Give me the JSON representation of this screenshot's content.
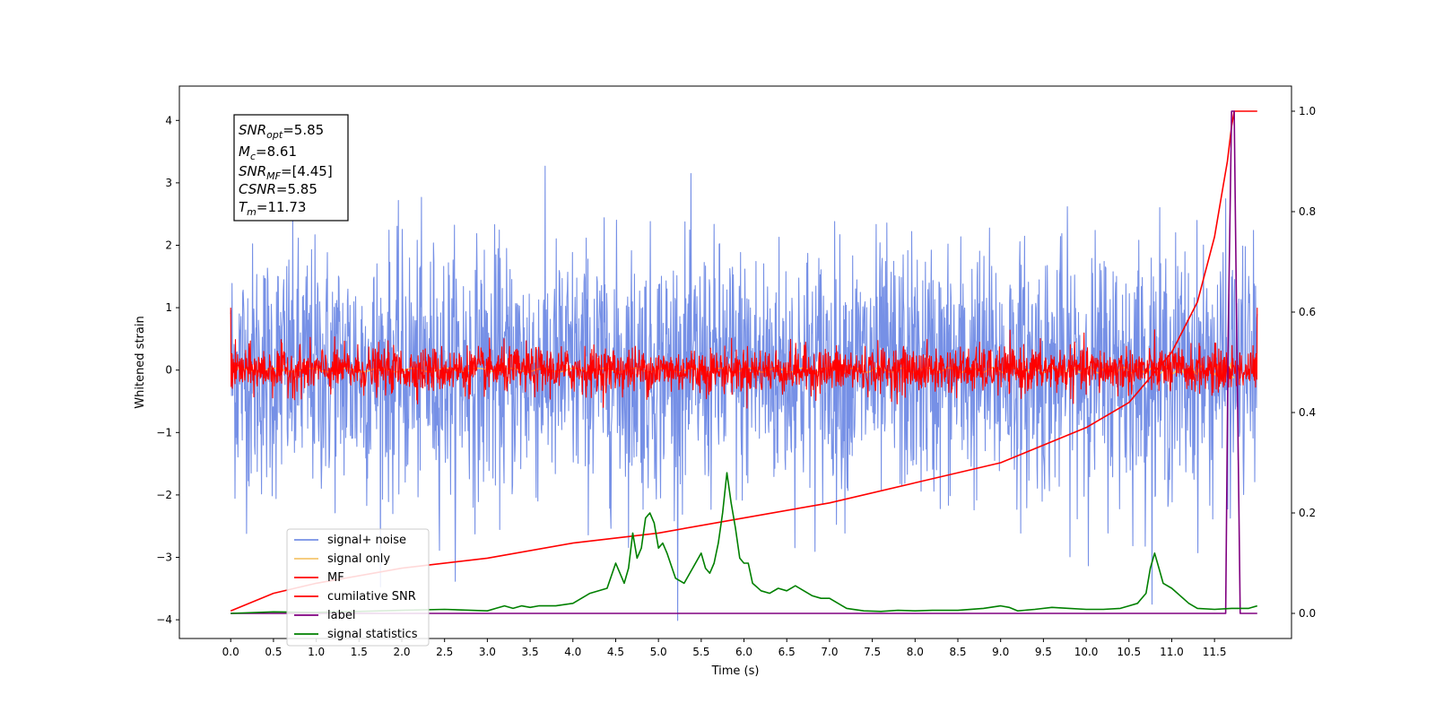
{
  "chart_data": {
    "type": "line",
    "xlabel": "Time (s)",
    "ylabel": "Whitened strain",
    "xlim": [
      -0.6,
      12.4
    ],
    "ylim": [
      -4.3,
      4.55
    ],
    "y2lim": [
      -0.05,
      1.05
    ],
    "x_ticks": [
      "0.0",
      "0.5",
      "1.0",
      "1.5",
      "2.0",
      "2.5",
      "3.0",
      "3.5",
      "4.0",
      "4.5",
      "5.0",
      "5.5",
      "6.0",
      "6.5",
      "7.0",
      "7.5",
      "8.0",
      "8.5",
      "9.0",
      "9.5",
      "10.0",
      "10.5",
      "11.0",
      "11.5"
    ],
    "y_ticks": [
      "−4",
      "−3",
      "−2",
      "−1",
      "0",
      "1",
      "2",
      "3",
      "4"
    ],
    "y2_ticks": [
      "0.0",
      "0.2",
      "0.4",
      "0.6",
      "0.8",
      "1.0"
    ],
    "grid": false,
    "legend_position": "lower-left",
    "annotation": {
      "snr_opt": {
        "sym": "SNR",
        "sub": "opt",
        "value": "=5.85"
      },
      "mc": {
        "sym": "M",
        "sub": "c",
        "value": "=8.61"
      },
      "snr_mf": {
        "sym": "SNR",
        "sub": "MF",
        "value": "=[4.45]"
      },
      "csnr": {
        "sym": "CSNR",
        "sub": "",
        "value": "=5.85"
      },
      "tm": {
        "sym": "T",
        "sub": "m",
        "value": "=11.73"
      }
    },
    "series": [
      {
        "name": "signal+ noise",
        "color": "#7690e6",
        "axis": "left",
        "kind": "noise",
        "envelope_std": 0.95,
        "x_range": [
          0.0,
          12.0
        ]
      },
      {
        "name": "signal only",
        "color": "#f5c66e",
        "axis": "left",
        "kind": "chirp",
        "x_range": [
          0.0,
          11.73
        ]
      },
      {
        "name": "MF",
        "color": "#ff0000",
        "axis": "left",
        "kind": "noise",
        "envelope_std": 0.18,
        "x_range": [
          0.0,
          12.0
        ]
      },
      {
        "name": "cumilative SNR",
        "color": "#ff0000",
        "axis": "right",
        "x": [
          0.0,
          0.5,
          1.0,
          2.0,
          3.0,
          4.0,
          5.0,
          6.0,
          7.0,
          8.0,
          9.0,
          10.0,
          10.5,
          11.0,
          11.3,
          11.5,
          11.6,
          11.65,
          11.7,
          11.73,
          11.8,
          12.0
        ],
        "values": [
          0.005,
          0.04,
          0.06,
          0.09,
          0.11,
          0.14,
          0.16,
          0.19,
          0.22,
          0.26,
          0.3,
          0.37,
          0.42,
          0.52,
          0.62,
          0.75,
          0.85,
          0.9,
          0.97,
          1.0,
          1.0,
          1.0
        ]
      },
      {
        "name": "label",
        "color": "#800080",
        "axis": "right",
        "x": [
          0.0,
          11.63,
          11.66,
          11.7,
          11.73,
          11.76,
          11.8,
          12.0
        ],
        "values": [
          0.0,
          0.0,
          0.55,
          1.0,
          1.0,
          0.55,
          0.0,
          0.0
        ]
      },
      {
        "name": "signal statistics",
        "color": "#008000",
        "axis": "right",
        "x": [
          0.0,
          0.5,
          1.0,
          1.5,
          2.0,
          2.5,
          3.0,
          3.1,
          3.2,
          3.3,
          3.4,
          3.5,
          3.6,
          3.8,
          4.0,
          4.1,
          4.2,
          4.4,
          4.5,
          4.6,
          4.65,
          4.7,
          4.75,
          4.8,
          4.85,
          4.9,
          4.95,
          5.0,
          5.05,
          5.1,
          5.2,
          5.3,
          5.4,
          5.5,
          5.55,
          5.6,
          5.65,
          5.7,
          5.75,
          5.8,
          5.85,
          5.9,
          5.95,
          6.0,
          6.05,
          6.1,
          6.2,
          6.3,
          6.4,
          6.5,
          6.6,
          6.7,
          6.8,
          6.9,
          7.0,
          7.2,
          7.4,
          7.6,
          7.8,
          8.0,
          8.2,
          8.5,
          8.8,
          9.0,
          9.1,
          9.2,
          9.4,
          9.6,
          9.8,
          10.0,
          10.2,
          10.4,
          10.5,
          10.6,
          10.7,
          10.75,
          10.8,
          10.85,
          10.9,
          11.0,
          11.2,
          11.3,
          11.5,
          11.7,
          11.9,
          12.0
        ],
        "values": [
          0.0,
          0.003,
          0.002,
          0.004,
          0.006,
          0.008,
          0.005,
          0.01,
          0.015,
          0.01,
          0.015,
          0.012,
          0.015,
          0.015,
          0.02,
          0.03,
          0.04,
          0.05,
          0.1,
          0.06,
          0.09,
          0.16,
          0.11,
          0.13,
          0.19,
          0.2,
          0.18,
          0.13,
          0.14,
          0.12,
          0.07,
          0.06,
          0.09,
          0.12,
          0.09,
          0.08,
          0.1,
          0.14,
          0.2,
          0.28,
          0.22,
          0.17,
          0.11,
          0.1,
          0.1,
          0.06,
          0.045,
          0.04,
          0.05,
          0.045,
          0.055,
          0.045,
          0.035,
          0.03,
          0.03,
          0.01,
          0.005,
          0.004,
          0.006,
          0.005,
          0.006,
          0.006,
          0.01,
          0.015,
          0.012,
          0.005,
          0.008,
          0.012,
          0.01,
          0.008,
          0.008,
          0.01,
          0.015,
          0.02,
          0.04,
          0.09,
          0.12,
          0.09,
          0.06,
          0.05,
          0.02,
          0.01,
          0.008,
          0.01,
          0.01,
          0.015
        ]
      }
    ]
  }
}
